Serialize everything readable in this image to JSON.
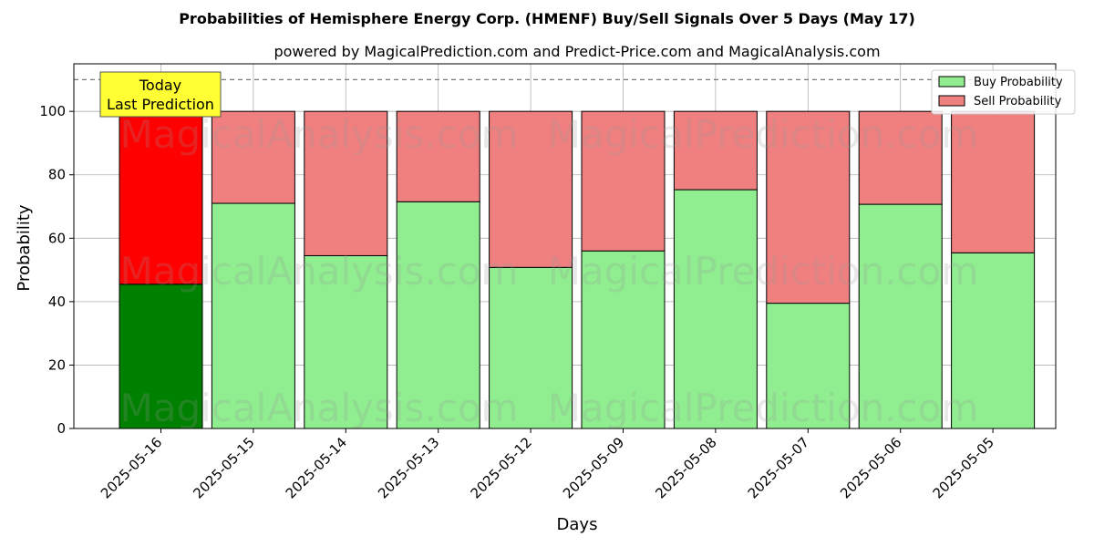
{
  "chart_data": {
    "type": "bar",
    "stacked": true,
    "title": "Probabilities of Hemisphere Energy Corp. (HMENF) Buy/Sell Signals Over 5 Days (May 17)",
    "subtitle": "powered by MagicalPrediction.com and Predict-Price.com and MagicalAnalysis.com",
    "xlabel": "Days",
    "ylabel": "Probability",
    "ylim": [
      0,
      115
    ],
    "yticks": [
      0,
      20,
      40,
      60,
      80,
      100
    ],
    "grid": true,
    "legend_position": "top-right",
    "reference_line": 110,
    "categories": [
      "2025-05-16",
      "2025-05-15",
      "2025-05-14",
      "2025-05-13",
      "2025-05-12",
      "2025-05-09",
      "2025-05-08",
      "2025-05-07",
      "2025-05-06",
      "2025-05-05"
    ],
    "series": [
      {
        "name": "Buy Probability",
        "values": [
          45.5,
          71.0,
          54.5,
          71.5,
          50.8,
          56.0,
          75.3,
          39.5,
          70.7,
          55.4
        ],
        "color": "#90EE90",
        "highlight_color": "#008000"
      },
      {
        "name": "Sell Probability",
        "values": [
          54.5,
          29.0,
          45.5,
          28.5,
          49.2,
          44.0,
          24.7,
          60.5,
          29.3,
          44.6
        ],
        "color": "#F08080",
        "highlight_color": "#FF0000"
      }
    ],
    "highlight_index": 0,
    "annotation": {
      "lines": [
        "Today",
        "Last Prediction"
      ],
      "color": "#FFFF33"
    },
    "watermarks": [
      "MagicalAnalysis.com",
      "MagicalPrediction.com"
    ]
  }
}
